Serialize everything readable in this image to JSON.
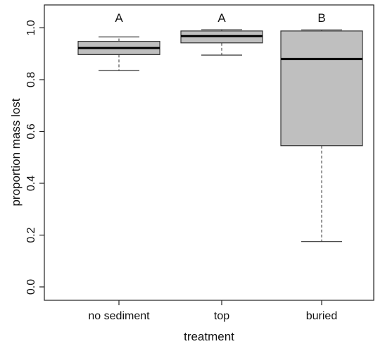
{
  "chart_data": {
    "type": "box",
    "xlabel": "treatment",
    "ylabel": "proportion mass lost",
    "ylim": [
      0.0,
      1.05
    ],
    "yticks": [
      "0.0",
      "0.2",
      "0.4",
      "0.6",
      "0.8",
      "1.0"
    ],
    "grid": false,
    "box_color": "#bfbfbf",
    "categories": [
      "no sediment",
      "top",
      "buried"
    ],
    "groups": [
      {
        "category": "no sediment",
        "letter": "A",
        "min": 0.835,
        "q1": 0.897,
        "median": 0.922,
        "q3": 0.948,
        "max": 0.965
      },
      {
        "category": "top",
        "letter": "A",
        "min": 0.895,
        "q1": 0.942,
        "median": 0.968,
        "q3": 0.988,
        "max": 0.993
      },
      {
        "category": "buried",
        "letter": "B",
        "min": 0.175,
        "q1": 0.545,
        "median": 0.88,
        "q3": 0.988,
        "max": 0.992
      }
    ]
  }
}
